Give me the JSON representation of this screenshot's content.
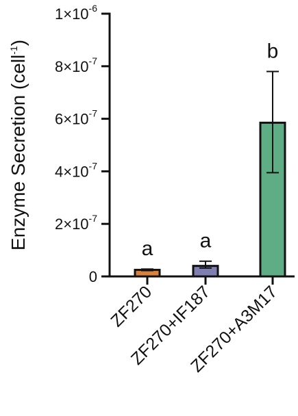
{
  "chart_data": {
    "type": "bar",
    "title": "",
    "xlabel": "",
    "ylabel": "Enzyme Secretion (cell",
    "ylabel_superscript": "-1",
    "ylabel_suffix": ")",
    "ylim": [
      0,
      1e-06
    ],
    "y_ticks": [
      {
        "value": 0,
        "label": "0",
        "exp": ""
      },
      {
        "value": 2e-07,
        "label": "2×10",
        "exp": "-7"
      },
      {
        "value": 4e-07,
        "label": "4×10",
        "exp": "-7"
      },
      {
        "value": 6e-07,
        "label": "6×10",
        "exp": "-7"
      },
      {
        "value": 8e-07,
        "label": "8×10",
        "exp": "-7"
      },
      {
        "value": 1e-06,
        "label": "1×10",
        "exp": "-6"
      }
    ],
    "categories": [
      "ZF270",
      "ZF270+IF187",
      "ZF270+A3M17"
    ],
    "values": [
      2.5e-08,
      4e-08,
      5.85e-07
    ],
    "error_upper": [
      2.8e-08,
      5.8e-08,
      7.8e-07
    ],
    "error_lower": [
      2.2e-08,
      3.2e-08,
      3.95e-07
    ],
    "significance": [
      "a",
      "a",
      "b"
    ],
    "colors": [
      "#d9823b",
      "#7f7fb1",
      "#5fad85"
    ],
    "grid": false,
    "legend": "none"
  }
}
